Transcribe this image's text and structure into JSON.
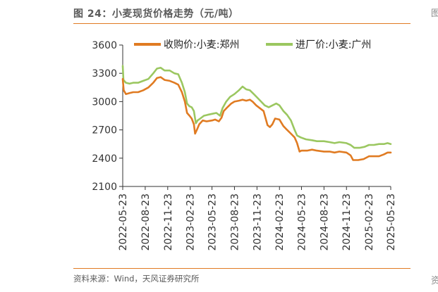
{
  "figure": {
    "title": "图 24：小麦现货价格走势（元/吨）",
    "source": "资料来源：Wind，天风证券研究所",
    "edge_top_char": "图",
    "edge_bottom_char": "资"
  },
  "colors": {
    "accent": "#e07b22",
    "zhengzhou": "#e07b22",
    "guangzhou": "#9bc760",
    "axis": "#333333"
  },
  "chart_data": {
    "type": "line",
    "title": "小麦现货价格走势（元/吨）",
    "xlabel": "",
    "ylabel": "",
    "ylim": [
      2100,
      3600
    ],
    "yticks": [
      2100,
      2400,
      2700,
      3000,
      3300,
      3600
    ],
    "ytick_labels": [
      "2100",
      "2400",
      "2700",
      "3000",
      "3300",
      "3600"
    ],
    "x_start": "2022-05-23",
    "x_end": "2025-05-23",
    "xticks": [
      "2022-05-23",
      "2022-08-23",
      "2022-11-23",
      "2023-02-23",
      "2023-05-23",
      "2023-08-23",
      "2023-11-23",
      "2024-02-23",
      "2024-05-23",
      "2024-08-23",
      "2024-11-23",
      "2025-02-23",
      "2025-05-23"
    ],
    "legend_position": "top",
    "grid": false,
    "series": [
      {
        "name": "收购价:小麦:郑州",
        "color": "#e07b22",
        "points": [
          [
            "2022-05-23",
            3240
          ],
          [
            "2022-05-27",
            3120
          ],
          [
            "2022-06-05",
            3080
          ],
          [
            "2022-06-20",
            3090
          ],
          [
            "2022-07-05",
            3100
          ],
          [
            "2022-07-25",
            3100
          ],
          [
            "2022-08-15",
            3120
          ],
          [
            "2022-09-05",
            3150
          ],
          [
            "2022-09-25",
            3200
          ],
          [
            "2022-10-10",
            3250
          ],
          [
            "2022-10-25",
            3260
          ],
          [
            "2022-11-10",
            3230
          ],
          [
            "2022-12-01",
            3220
          ],
          [
            "2022-12-20",
            3200
          ],
          [
            "2023-01-05",
            3180
          ],
          [
            "2023-01-20",
            3100
          ],
          [
            "2023-02-01",
            3000
          ],
          [
            "2023-02-10",
            2880
          ],
          [
            "2023-02-20",
            2850
          ],
          [
            "2023-03-01",
            2820
          ],
          [
            "2023-03-10",
            2760
          ],
          [
            "2023-03-15",
            2660
          ],
          [
            "2023-03-22",
            2700
          ],
          [
            "2023-04-01",
            2760
          ],
          [
            "2023-04-15",
            2800
          ],
          [
            "2023-05-01",
            2790
          ],
          [
            "2023-05-23",
            2800
          ],
          [
            "2023-06-05",
            2810
          ],
          [
            "2023-06-20",
            2790
          ],
          [
            "2023-07-01",
            2830
          ],
          [
            "2023-07-10",
            2900
          ],
          [
            "2023-07-25",
            2940
          ],
          [
            "2023-08-10",
            2980
          ],
          [
            "2023-08-23",
            3000
          ],
          [
            "2023-09-10",
            3010
          ],
          [
            "2023-09-25",
            3020
          ],
          [
            "2023-10-10",
            3010
          ],
          [
            "2023-10-25",
            3020
          ],
          [
            "2023-11-05",
            3000
          ],
          [
            "2023-11-20",
            2960
          ],
          [
            "2023-12-05",
            2930
          ],
          [
            "2023-12-20",
            2900
          ],
          [
            "2024-01-05",
            2750
          ],
          [
            "2024-01-15",
            2730
          ],
          [
            "2024-01-25",
            2760
          ],
          [
            "2024-02-05",
            2820
          ],
          [
            "2024-02-23",
            2810
          ],
          [
            "2024-03-10",
            2740
          ],
          [
            "2024-03-25",
            2700
          ],
          [
            "2024-04-10",
            2660
          ],
          [
            "2024-04-25",
            2620
          ],
          [
            "2024-05-05",
            2560
          ],
          [
            "2024-05-15",
            2470
          ],
          [
            "2024-05-23",
            2480
          ],
          [
            "2024-06-15",
            2480
          ],
          [
            "2024-07-05",
            2490
          ],
          [
            "2024-07-25",
            2480
          ],
          [
            "2024-08-23",
            2470
          ],
          [
            "2024-09-15",
            2470
          ],
          [
            "2024-10-05",
            2460
          ],
          [
            "2024-10-25",
            2470
          ],
          [
            "2024-11-23",
            2460
          ],
          [
            "2024-12-10",
            2430
          ],
          [
            "2024-12-20",
            2380
          ],
          [
            "2025-01-10",
            2380
          ],
          [
            "2025-02-01",
            2390
          ],
          [
            "2025-02-23",
            2420
          ],
          [
            "2025-03-15",
            2420
          ],
          [
            "2025-04-05",
            2420
          ],
          [
            "2025-04-25",
            2440
          ],
          [
            "2025-05-10",
            2460
          ],
          [
            "2025-05-23",
            2460
          ]
        ]
      },
      {
        "name": "进厂价:小麦:广州",
        "color": "#9bc760",
        "points": [
          [
            "2022-05-23",
            3380
          ],
          [
            "2022-05-26",
            3230
          ],
          [
            "2022-06-05",
            3200
          ],
          [
            "2022-06-20",
            3190
          ],
          [
            "2022-07-05",
            3200
          ],
          [
            "2022-07-25",
            3200
          ],
          [
            "2022-08-15",
            3220
          ],
          [
            "2022-09-05",
            3240
          ],
          [
            "2022-09-25",
            3300
          ],
          [
            "2022-10-10",
            3350
          ],
          [
            "2022-10-25",
            3360
          ],
          [
            "2022-11-10",
            3330
          ],
          [
            "2022-12-01",
            3330
          ],
          [
            "2022-12-20",
            3300
          ],
          [
            "2023-01-05",
            3290
          ],
          [
            "2023-01-20",
            3200
          ],
          [
            "2023-02-01",
            3100
          ],
          [
            "2023-02-10",
            2980
          ],
          [
            "2023-02-20",
            2950
          ],
          [
            "2023-03-01",
            2940
          ],
          [
            "2023-03-10",
            2900
          ],
          [
            "2023-03-18",
            2770
          ],
          [
            "2023-03-25",
            2800
          ],
          [
            "2023-04-05",
            2820
          ],
          [
            "2023-04-20",
            2850
          ],
          [
            "2023-05-05",
            2860
          ],
          [
            "2023-05-23",
            2870
          ],
          [
            "2023-06-10",
            2880
          ],
          [
            "2023-06-25",
            2850
          ],
          [
            "2023-07-05",
            2930
          ],
          [
            "2023-07-20",
            3000
          ],
          [
            "2023-08-05",
            3050
          ],
          [
            "2023-08-23",
            3080
          ],
          [
            "2023-09-10",
            3120
          ],
          [
            "2023-09-25",
            3160
          ],
          [
            "2023-10-10",
            3130
          ],
          [
            "2023-10-25",
            3120
          ],
          [
            "2023-11-10",
            3080
          ],
          [
            "2023-11-25",
            3040
          ],
          [
            "2023-12-10",
            3000
          ],
          [
            "2023-12-25",
            2960
          ],
          [
            "2024-01-10",
            2940
          ],
          [
            "2024-01-25",
            2960
          ],
          [
            "2024-02-10",
            2980
          ],
          [
            "2024-02-23",
            2960
          ],
          [
            "2024-03-10",
            2900
          ],
          [
            "2024-03-25",
            2860
          ],
          [
            "2024-04-10",
            2800
          ],
          [
            "2024-04-25",
            2700
          ],
          [
            "2024-05-05",
            2640
          ],
          [
            "2024-05-20",
            2620
          ],
          [
            "2024-06-10",
            2600
          ],
          [
            "2024-07-05",
            2590
          ],
          [
            "2024-07-25",
            2580
          ],
          [
            "2024-08-23",
            2580
          ],
          [
            "2024-09-15",
            2570
          ],
          [
            "2024-10-05",
            2560
          ],
          [
            "2024-10-25",
            2570
          ],
          [
            "2024-11-23",
            2560
          ],
          [
            "2024-12-10",
            2540
          ],
          [
            "2024-12-25",
            2510
          ],
          [
            "2025-01-15",
            2510
          ],
          [
            "2025-02-05",
            2520
          ],
          [
            "2025-02-23",
            2540
          ],
          [
            "2025-03-15",
            2540
          ],
          [
            "2025-04-05",
            2550
          ],
          [
            "2025-04-25",
            2550
          ],
          [
            "2025-05-10",
            2560
          ],
          [
            "2025-05-23",
            2550
          ]
        ]
      }
    ]
  }
}
